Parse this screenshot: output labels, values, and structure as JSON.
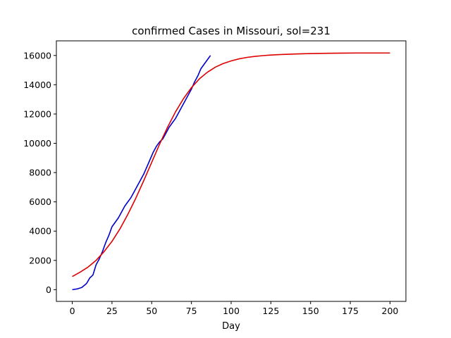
{
  "chart_data": {
    "type": "line",
    "title": "confirmed Cases in Missouri, sol=231",
    "xlabel": "Day",
    "ylabel": "",
    "xlim": [
      -10,
      210
    ],
    "ylim": [
      -800,
      17000
    ],
    "xticks": [
      0,
      25,
      50,
      75,
      100,
      125,
      150,
      175,
      200
    ],
    "yticks": [
      0,
      2000,
      4000,
      6000,
      8000,
      10000,
      12000,
      14000,
      16000
    ],
    "grid": false,
    "series": [
      {
        "color": "#0000cc",
        "x": [
          0,
          3,
          6,
          9,
          11,
          13,
          15,
          17,
          19,
          21,
          23,
          25,
          27,
          29,
          31,
          33,
          35,
          37,
          39,
          41,
          43,
          45,
          47,
          49,
          51,
          53,
          55,
          57,
          59,
          61,
          63,
          65,
          67,
          69,
          71,
          73,
          75,
          77,
          79,
          81,
          83,
          85,
          87
        ],
        "values": [
          0,
          50,
          150,
          420,
          800,
          1000,
          1700,
          2100,
          2600,
          3200,
          3700,
          4300,
          4600,
          4900,
          5300,
          5700,
          6000,
          6300,
          6700,
          7100,
          7500,
          7900,
          8400,
          8900,
          9400,
          9800,
          10100,
          10300,
          10700,
          11100,
          11400,
          11700,
          12100,
          12500,
          12900,
          13300,
          13700,
          14200,
          14600,
          15100,
          15400,
          15700,
          16000
        ]
      },
      {
        "color": "#dd0000",
        "x": [
          0,
          5,
          10,
          15,
          20,
          25,
          30,
          35,
          40,
          45,
          50,
          55,
          60,
          65,
          70,
          75,
          80,
          85,
          90,
          95,
          100,
          105,
          110,
          115,
          120,
          125,
          130,
          140,
          150,
          160,
          170,
          180,
          190,
          200
        ],
        "values": [
          900,
          1200,
          1550,
          2000,
          2600,
          3300,
          4150,
          5150,
          6250,
          7450,
          8700,
          9950,
          11100,
          12150,
          13050,
          13800,
          14400,
          14850,
          15200,
          15450,
          15630,
          15770,
          15870,
          15940,
          15990,
          16030,
          16060,
          16100,
          16130,
          16150,
          16160,
          16170,
          16170,
          16170
        ]
      }
    ]
  }
}
